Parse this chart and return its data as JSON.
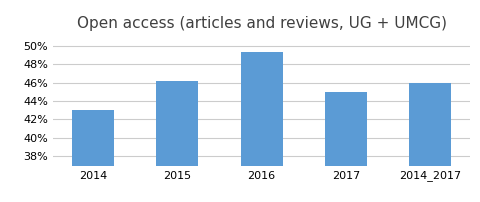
{
  "categories": [
    "2014",
    "2015",
    "2016",
    "2017",
    "2014_2017"
  ],
  "values": [
    0.43,
    0.462,
    0.493,
    0.45,
    0.46
  ],
  "bar_color": "#5B9BD5",
  "title": "Open access (articles and reviews, UG + UMCG)",
  "title_fontsize": 11,
  "ylim": [
    0.37,
    0.51
  ],
  "yticks": [
    0.38,
    0.4,
    0.42,
    0.44,
    0.46,
    0.48,
    0.5
  ],
  "grid_color": "#CCCCCC",
  "background_color": "#FFFFFF",
  "tick_label_fontsize": 8,
  "bar_width": 0.5
}
